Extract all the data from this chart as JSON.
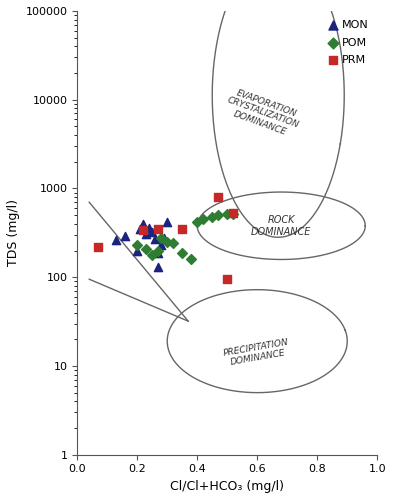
{
  "xlabel": "Cl/Cl+HCO₃ (mg/l)",
  "ylabel": "TDS (mg/l)",
  "xlim": [
    0.0,
    1.0
  ],
  "ylim_log": [
    1,
    100000
  ],
  "MON_x": [
    0.13,
    0.16,
    0.2,
    0.21,
    0.22,
    0.23,
    0.24,
    0.25,
    0.26,
    0.27,
    0.27,
    0.28,
    0.29,
    0.3
  ],
  "MON_y": [
    260,
    290,
    200,
    350,
    400,
    310,
    360,
    320,
    270,
    190,
    130,
    230,
    280,
    420
  ],
  "POM_x": [
    0.2,
    0.23,
    0.25,
    0.27,
    0.28,
    0.3,
    0.32,
    0.35,
    0.38,
    0.4,
    0.42,
    0.45,
    0.47,
    0.5,
    0.52
  ],
  "POM_y": [
    230,
    210,
    180,
    200,
    280,
    250,
    240,
    190,
    160,
    420,
    450,
    480,
    500,
    510,
    520
  ],
  "PRM_x": [
    0.07,
    0.22,
    0.27,
    0.35,
    0.47,
    0.5,
    0.52
  ],
  "PRM_y": [
    220,
    340,
    350,
    350,
    800,
    95,
    530
  ],
  "MON_color": "#1a237e",
  "POM_color": "#2e7d32",
  "PRM_color": "#c62828",
  "line_color": "#666666",
  "background_color": "#ffffff"
}
